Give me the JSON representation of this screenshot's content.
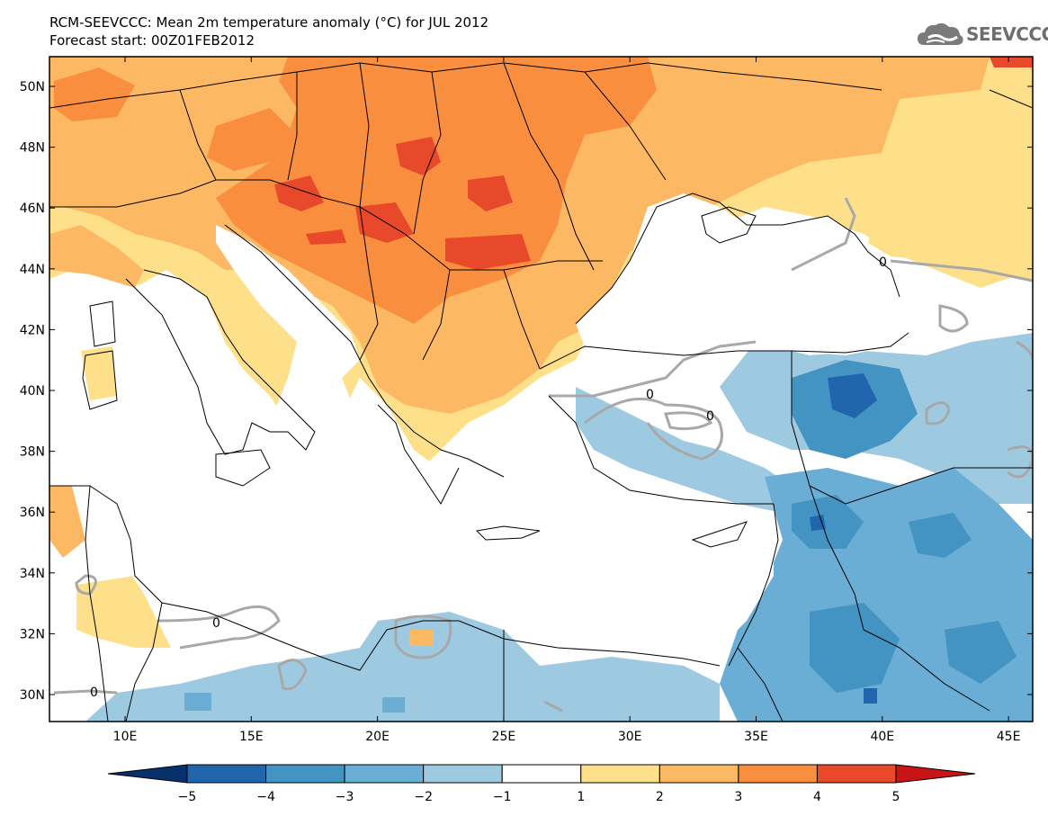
{
  "header": {
    "title_line1": "RCM-SEEVCCC: Mean 2m temperature anomaly (°C) for JUL 2012",
    "title_line2": "Forecast start: 00Z01FEB2012",
    "logo_text": "SEEVCCC"
  },
  "map": {
    "lat_labels": [
      "50N",
      "48N",
      "46N",
      "44N",
      "42N",
      "40N",
      "38N",
      "36N",
      "34N",
      "32N",
      "30N"
    ],
    "lon_labels": [
      "10E",
      "15E",
      "20E",
      "25E",
      "30E",
      "35E",
      "40E",
      "45E"
    ],
    "contour_label": "0"
  },
  "colorbar": {
    "labels": [
      "−5",
      "−4",
      "−3",
      "−2",
      "−1",
      "1",
      "2",
      "3",
      "4",
      "5"
    ],
    "colors": [
      "#08306b",
      "#2166ac",
      "#4393c3",
      "#6aaed6",
      "#9ecae1",
      "#ffffff",
      "#fee08b",
      "#fdb863",
      "#f98e3f",
      "#e8492a",
      "#c81414"
    ]
  }
}
